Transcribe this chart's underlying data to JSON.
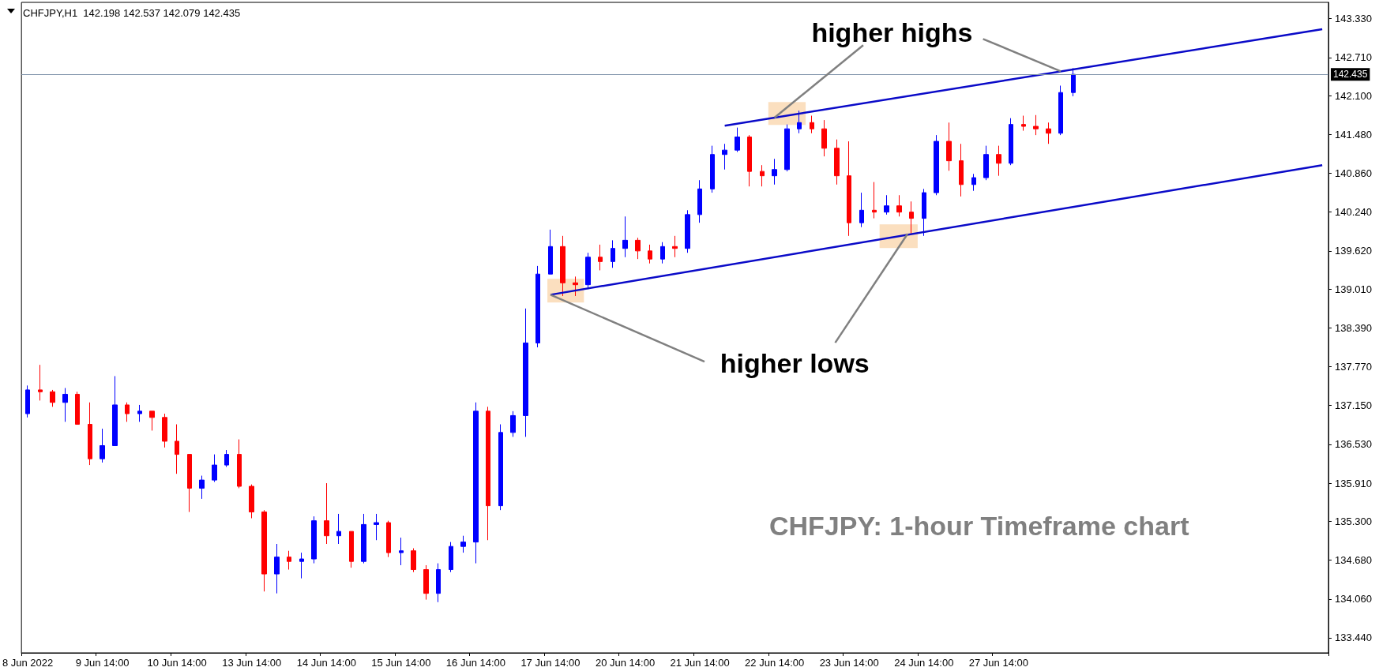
{
  "chart_data": {
    "type": "candlestick",
    "title": "CHFJPY,H1  142.198 142.537 142.079 142.435",
    "annotations": [
      {
        "text": "higher highs",
        "x": "22 Jun 14:00",
        "y": 141.75
      },
      {
        "text": "higher lows",
        "x": "17 Jun 14:00",
        "y": 138.92
      },
      "CHFJPY: 1-hour Timeframe chart"
    ],
    "categories": [
      "8 Jun 2022",
      null,
      null,
      null,
      null,
      null,
      "9 Jun 14:00",
      null,
      null,
      null,
      null,
      null,
      "10 Jun 14:00",
      null,
      null,
      null,
      null,
      null,
      "13 Jun 14:00",
      null,
      null,
      null,
      null,
      null,
      "14 Jun 14:00",
      null,
      null,
      null,
      null,
      null,
      "15 Jun 14:00",
      null,
      null,
      null,
      null,
      null,
      "16 Jun 14:00",
      null,
      null,
      null,
      null,
      null,
      "17 Jun 14:00",
      null,
      null,
      null,
      null,
      null,
      "20 Jun 14:00",
      null,
      null,
      null,
      null,
      null,
      "21 Jun 14:00",
      null,
      null,
      null,
      null,
      null,
      "22 Jun 14:00",
      null,
      null,
      null,
      null,
      null,
      "23 Jun 14:00",
      null,
      null,
      null,
      null,
      null,
      "24 Jun 14:00",
      null,
      null,
      null,
      null,
      null,
      "27 Jun 14:00",
      null,
      null,
      null,
      null,
      null,
      null,
      null,
      null,
      null,
      null,
      null,
      null,
      null,
      null,
      null,
      null,
      null,
      null,
      null,
      null,
      null,
      null,
      null,
      null,
      null,
      null
    ],
    "series": [
      {
        "type": "candlestick",
        "colors": [
          "#0000ff",
          "#ff0000",
          "#ff0000",
          "#0000ff",
          "#ff0000",
          "#ff0000",
          "#0000ff",
          "#0000ff",
          "#ff0000",
          "#0000ff",
          "#ff0000",
          "#ff0000",
          "#ff0000",
          "#ff0000",
          "#0000ff",
          "#0000ff",
          "#0000ff",
          "#ff0000",
          "#ff0000",
          "#ff0000",
          "#0000ff",
          "#ff0000",
          "#0000ff",
          "#0000ff",
          "#ff0000",
          "#0000ff",
          "#ff0000",
          "#0000ff",
          "#0000ff",
          "#ff0000",
          "#0000ff",
          "#ff0000",
          "#ff0000",
          "#0000ff",
          "#0000ff",
          "#0000ff",
          "#0000ff",
          "#ff0000",
          "#0000ff",
          "#0000ff",
          "#0000ff",
          "#0000ff",
          "#0000ff",
          "#ff0000",
          "#ff0000",
          "#0000ff",
          "#ff0000",
          "#0000ff",
          "#0000ff",
          "#ff0000",
          "#ff0000",
          "#0000ff",
          "#ff0000",
          "#0000ff",
          "#0000ff",
          "#0000ff",
          "#0000ff",
          "#0000ff",
          "#ff0000",
          "#ff0000",
          "#0000ff",
          "#0000ff",
          "#0000ff",
          "#ff0000",
          "#ff0000",
          "#ff0000",
          "#ff0000",
          "#0000ff",
          "#ff0000",
          "#0000ff",
          "#ff0000",
          "#ff0000",
          "#0000ff",
          "#0000ff",
          "#ff0000",
          "#ff0000",
          "#0000ff",
          "#0000ff",
          "#ff0000",
          "#0000ff",
          "#ff0000",
          "#ff0000",
          "#ff0000",
          "#0000ff",
          "#0000ff",
          null,
          null,
          null,
          null,
          null,
          null,
          null,
          null,
          null,
          null,
          null,
          null,
          null,
          null,
          null,
          null,
          null,
          null,
          null,
          null
        ],
        "ohlc": [
          [
            137.02,
            137.47,
            136.96,
            137.4
          ],
          [
            137.4,
            137.8,
            137.23,
            137.37
          ],
          [
            137.37,
            137.4,
            137.13,
            137.2
          ],
          [
            137.2,
            137.43,
            136.89,
            137.33
          ],
          [
            137.33,
            137.37,
            136.85,
            136.85
          ],
          [
            136.85,
            137.2,
            136.2,
            136.3
          ],
          [
            136.3,
            136.78,
            136.24,
            136.51
          ],
          [
            136.51,
            137.62,
            136.51,
            137.16
          ],
          [
            137.16,
            137.2,
            136.89,
            137.02
          ],
          [
            137.02,
            137.16,
            136.89,
            137.06
          ],
          [
            137.06,
            137.06,
            136.75,
            136.96
          ],
          [
            136.96,
            137.02,
            136.48,
            136.58
          ],
          [
            136.58,
            136.85,
            136.06,
            136.37
          ],
          [
            136.37,
            136.37,
            135.45,
            135.83
          ],
          [
            135.83,
            136.03,
            135.66,
            135.96
          ],
          [
            135.96,
            136.37,
            135.93,
            136.2
          ],
          [
            136.2,
            136.44,
            136.17,
            136.37
          ],
          [
            136.37,
            136.61,
            135.83,
            135.86
          ],
          [
            135.86,
            135.89,
            135.35,
            135.45
          ],
          [
            135.45,
            135.48,
            134.18,
            134.46
          ],
          [
            134.46,
            134.94,
            134.15,
            134.73
          ],
          [
            134.73,
            134.83,
            134.53,
            134.66
          ],
          [
            134.66,
            134.8,
            134.39,
            134.7
          ],
          [
            134.7,
            135.38,
            134.63,
            135.31
          ],
          [
            135.31,
            135.91,
            134.94,
            135.07
          ],
          [
            135.07,
            135.42,
            134.94,
            135.14
          ],
          [
            135.14,
            135.14,
            134.56,
            134.66
          ],
          [
            134.66,
            135.42,
            134.63,
            135.25
          ],
          [
            135.25,
            135.42,
            135.0,
            135.28
          ],
          [
            135.28,
            135.31,
            134.73,
            134.8
          ],
          [
            134.8,
            135.04,
            134.6,
            134.83
          ],
          [
            134.83,
            134.87,
            134.49,
            134.53
          ],
          [
            134.53,
            134.6,
            134.05,
            134.15
          ],
          [
            134.15,
            134.63,
            134.01,
            134.53
          ],
          [
            134.53,
            134.97,
            134.49,
            134.9
          ],
          [
            134.9,
            135.07,
            134.8,
            134.97
          ],
          [
            134.97,
            137.2,
            134.63,
            137.06
          ],
          [
            137.06,
            137.13,
            135.0,
            135.55
          ],
          [
            135.55,
            136.85,
            135.48,
            136.72
          ],
          [
            136.72,
            137.06,
            136.65,
            136.99
          ],
          [
            136.99,
            138.7,
            136.65,
            138.15
          ],
          [
            138.15,
            139.38,
            138.08,
            139.25
          ],
          [
            139.25,
            139.96,
            139.25,
            139.69
          ],
          [
            139.69,
            139.86,
            138.9,
            139.11
          ],
          [
            139.11,
            139.21,
            138.9,
            139.08
          ],
          [
            139.08,
            139.59,
            139.01,
            139.52
          ],
          [
            139.52,
            139.72,
            139.31,
            139.45
          ],
          [
            139.45,
            139.79,
            139.35,
            139.66
          ],
          [
            139.66,
            140.17,
            139.52,
            139.79
          ],
          [
            139.79,
            139.83,
            139.49,
            139.62
          ],
          [
            139.62,
            139.72,
            139.42,
            139.49
          ],
          [
            139.49,
            139.76,
            139.42,
            139.69
          ],
          [
            139.69,
            139.86,
            139.52,
            139.66
          ],
          [
            139.66,
            140.27,
            139.59,
            140.2
          ],
          [
            140.2,
            140.75,
            140.07,
            140.61
          ],
          [
            140.61,
            141.3,
            140.55,
            141.16
          ],
          [
            141.16,
            141.33,
            140.92,
            141.23
          ],
          [
            141.23,
            141.59,
            141.2,
            141.44
          ],
          [
            141.44,
            141.47,
            140.65,
            140.89
          ],
          [
            140.89,
            140.99,
            140.65,
            140.82
          ],
          [
            140.82,
            141.09,
            140.68,
            140.92
          ],
          [
            140.92,
            141.64,
            140.89,
            141.57
          ],
          [
            141.57,
            141.86,
            141.5,
            141.67
          ],
          [
            141.67,
            141.78,
            141.5,
            141.57
          ],
          [
            141.57,
            141.71,
            141.13,
            141.26
          ],
          [
            141.26,
            141.4,
            140.68,
            140.82
          ],
          [
            140.82,
            141.37,
            139.86,
            140.07
          ],
          [
            140.07,
            140.55,
            140.0,
            140.27
          ],
          [
            140.27,
            140.72,
            140.14,
            140.24
          ],
          [
            140.24,
            140.51,
            140.2,
            140.34
          ],
          [
            140.34,
            140.51,
            140.17,
            140.24
          ],
          [
            140.24,
            140.41,
            139.9,
            140.14
          ],
          [
            140.14,
            140.61,
            139.86,
            140.55
          ],
          [
            140.55,
            141.47,
            140.51,
            141.37
          ],
          [
            141.37,
            141.67,
            140.9,
            141.06
          ],
          [
            141.06,
            141.33,
            140.49,
            140.68
          ],
          [
            140.68,
            140.85,
            140.58,
            140.79
          ],
          [
            140.79,
            141.3,
            140.75,
            141.16
          ],
          [
            141.16,
            141.3,
            140.82,
            141.02
          ],
          [
            141.02,
            141.74,
            140.99,
            141.64
          ],
          [
            141.64,
            141.78,
            141.54,
            141.61
          ],
          [
            141.61,
            141.79,
            141.47,
            141.57
          ],
          [
            141.57,
            141.67,
            141.33,
            141.5
          ],
          [
            141.5,
            142.26,
            141.47,
            142.15
          ],
          [
            142.15,
            142.54,
            142.09,
            142.44
          ],
          null,
          null,
          null,
          null,
          null,
          null,
          null,
          null,
          null,
          null,
          null,
          null,
          null,
          null,
          null,
          null,
          null,
          null,
          null,
          null
        ]
      },
      {
        "type": "line",
        "color": "#0a0ac8",
        "values": [
          null,
          null,
          null,
          null,
          null,
          null,
          null,
          null,
          null,
          null,
          null,
          null,
          null,
          null,
          null,
          null,
          null,
          null,
          null,
          null,
          null,
          null,
          null,
          null,
          null,
          null,
          null,
          null,
          null,
          null,
          null,
          null,
          null,
          null,
          null,
          null,
          null,
          null,
          null,
          null,
          null,
          null,
          null,
          null,
          null,
          null,
          null,
          null,
          null,
          null,
          null,
          null,
          null,
          null,
          null,
          null,
          141.62,
          null,
          null,
          null,
          null,
          null,
          null,
          null,
          null,
          null,
          null,
          null,
          null,
          null,
          null,
          null,
          null,
          null,
          null,
          null,
          null,
          null,
          null,
          null,
          null,
          null,
          null,
          null,
          null,
          null,
          null,
          null,
          null,
          null,
          null,
          null,
          null,
          null,
          null,
          null,
          null,
          null,
          null,
          null,
          null,
          null,
          null,
          null,
          143.16
        ]
      },
      {
        "type": "line",
        "color": "#0a0ac8",
        "values": [
          null,
          null,
          null,
          null,
          null,
          null,
          null,
          null,
          null,
          null,
          null,
          null,
          null,
          null,
          null,
          null,
          null,
          null,
          null,
          null,
          null,
          null,
          null,
          null,
          null,
          null,
          null,
          null,
          null,
          null,
          null,
          null,
          null,
          null,
          null,
          null,
          null,
          null,
          null,
          null,
          null,
          null,
          138.92,
          null,
          null,
          null,
          null,
          null,
          null,
          null,
          null,
          null,
          null,
          null,
          null,
          null,
          null,
          null,
          null,
          null,
          null,
          null,
          null,
          null,
          null,
          null,
          null,
          null,
          null,
          null,
          null,
          null,
          null,
          null,
          null,
          null,
          null,
          null,
          null,
          null,
          null,
          null,
          null,
          null,
          null,
          null,
          null,
          null,
          null,
          null,
          null,
          null,
          null,
          null,
          null,
          null,
          null,
          null,
          null,
          null,
          null,
          null,
          null,
          null,
          140.99
        ]
      }
    ],
    "ylim": [
      133.2,
      143.59
    ],
    "yticks": [
      {
        "value": 133.44,
        "label": "133.440"
      },
      {
        "value": 134.06,
        "label": "134.060"
      },
      {
        "value": 134.68,
        "label": "134.680"
      },
      {
        "value": 135.3,
        "label": "135.300"
      },
      {
        "value": 135.91,
        "label": "135.910"
      },
      {
        "value": 136.53,
        "label": "136.530"
      },
      {
        "value": 137.15,
        "label": "137.150"
      },
      {
        "value": 137.77,
        "label": "137.770"
      },
      {
        "value": 138.39,
        "label": "138.390"
      },
      {
        "value": 139.01,
        "label": "139.010"
      },
      {
        "value": 139.62,
        "label": "139.620"
      },
      {
        "value": 140.24,
        "label": "140.240"
      },
      {
        "value": 140.86,
        "label": "140.860"
      },
      {
        "value": 141.48,
        "label": "141.480"
      },
      {
        "value": 142.1,
        "label": "142.100"
      },
      {
        "value": 142.71,
        "label": "142.710"
      },
      {
        "value": 143.33,
        "label": "143.330"
      }
    ],
    "ref_lines": [
      {
        "axis": "y",
        "value": 142.435,
        "label": "142.435",
        "color": "#8094aa"
      }
    ],
    "grid": false
  }
}
